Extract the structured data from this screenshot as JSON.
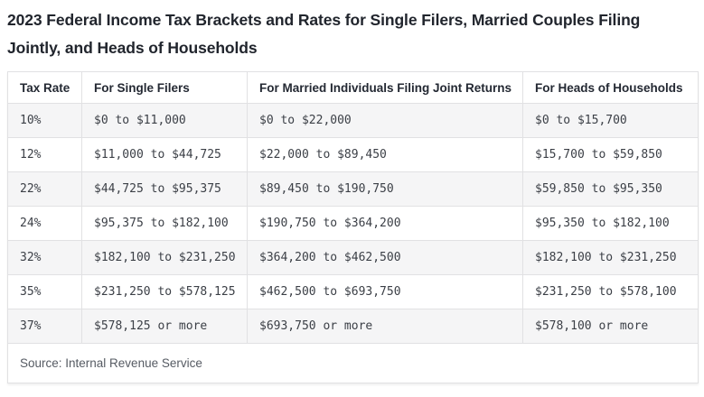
{
  "page": {
    "title": "2023 Federal Income Tax Brackets and Rates for Single Filers, Married Couples Filing Jointly, and Heads of Households"
  },
  "table": {
    "columns": [
      "Tax Rate",
      "For Single Filers",
      "For Married Individuals Filing Joint Returns",
      "For Heads of Households"
    ],
    "rows": [
      [
        "10%",
        "$0 to $11,000",
        "$0 to $22,000",
        "$0 to $15,700"
      ],
      [
        "12%",
        "$11,000 to $44,725",
        "$22,000 to $89,450",
        "$15,700 to $59,850"
      ],
      [
        "22%",
        "$44,725 to $95,375",
        "$89,450 to $190,750",
        "$59,850 to $95,350"
      ],
      [
        "24%",
        "$95,375 to $182,100",
        "$190,750 to $364,200",
        "$95,350 to $182,100"
      ],
      [
        "32%",
        "$182,100 to $231,250",
        "$364,200 to $462,500",
        "$182,100 to $231,250"
      ],
      [
        "35%",
        "$231,250 to $578,125",
        "$462,500 to $693,750",
        "$231,250 to $578,100"
      ],
      [
        "37%",
        "$578,125 or more",
        "$693,750 or more",
        "$578,100 or more"
      ]
    ],
    "source": "Source: Internal Revenue Service"
  },
  "chart_data": {
    "type": "table",
    "title": "2023 Federal Income Tax Brackets and Rates for Single Filers, Married Couples Filing Jointly, and Heads of Households",
    "columns": [
      "Tax Rate",
      "For Single Filers",
      "For Married Individuals Filing Joint Returns",
      "For Heads of Households"
    ],
    "rows": [
      [
        "10%",
        "$0 to $11,000",
        "$0 to $22,000",
        "$0 to $15,700"
      ],
      [
        "12%",
        "$11,000 to $44,725",
        "$22,000 to $89,450",
        "$15,700 to $59,850"
      ],
      [
        "22%",
        "$44,725 to $95,375",
        "$89,450 to $190,750",
        "$59,850 to $95,350"
      ],
      [
        "24%",
        "$95,375 to $182,100",
        "$190,750 to $364,200",
        "$95,350 to $182,100"
      ],
      [
        "32%",
        "$182,100 to $231,250",
        "$364,200 to $462,500",
        "$182,100 to $231,250"
      ],
      [
        "35%",
        "$231,250 to $578,125",
        "$462,500 to $693,750",
        "$231,250 to $578,100"
      ],
      [
        "37%",
        "$578,125 or more",
        "$693,750 or more",
        "$578,100 or more"
      ]
    ],
    "source_note": "Source: Internal Revenue Service"
  },
  "colors": {
    "title_text": "#21252d",
    "header_text": "#242933",
    "body_text": "#3b3f46",
    "source_text": "#565b63",
    "stripe": "#f5f5f6",
    "border": "#e1e1e3"
  }
}
